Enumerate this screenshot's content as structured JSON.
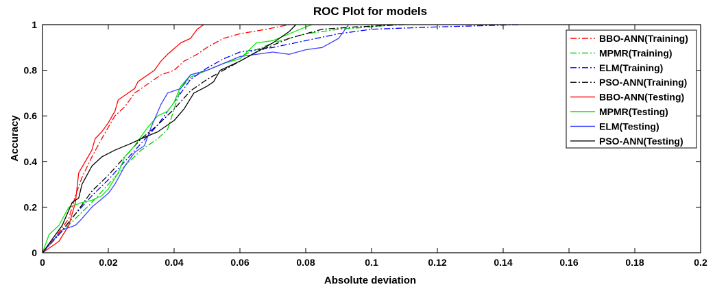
{
  "chart_data": {
    "type": "line",
    "title": "ROC Plot for models",
    "xlabel": "Absolute deviation",
    "ylabel": "Accuracy",
    "xlim": [
      0,
      0.2
    ],
    "ylim": [
      0,
      1
    ],
    "xticks": [
      0,
      0.02,
      0.04,
      0.06,
      0.08,
      0.1,
      0.12,
      0.14,
      0.16,
      0.18,
      0.2
    ],
    "xtick_labels": [
      "0",
      "0.02",
      "0.04",
      "0.06",
      "0.08",
      "0.1",
      "0.12",
      "0.14",
      "0.16",
      "0.18",
      "0.2"
    ],
    "yticks": [
      0,
      0.2,
      0.4,
      0.6,
      0.8,
      1
    ],
    "ytick_labels": [
      "0",
      "0.2",
      "0.4",
      "0.6",
      "0.8",
      "1"
    ],
    "grid": false,
    "legend_position": "top-right",
    "series": [
      {
        "name": "BBO-ANN(Training)",
        "color": "#ff0000",
        "style": "dashdot",
        "points": [
          [
            0,
            0
          ],
          [
            0.004,
            0.07
          ],
          [
            0.008,
            0.15
          ],
          [
            0.01,
            0.25
          ],
          [
            0.012,
            0.33
          ],
          [
            0.015,
            0.42
          ],
          [
            0.018,
            0.5
          ],
          [
            0.02,
            0.55
          ],
          [
            0.022,
            0.6
          ],
          [
            0.025,
            0.64
          ],
          [
            0.028,
            0.7
          ],
          [
            0.032,
            0.74
          ],
          [
            0.036,
            0.78
          ],
          [
            0.04,
            0.8
          ],
          [
            0.043,
            0.84
          ],
          [
            0.047,
            0.87
          ],
          [
            0.05,
            0.9
          ],
          [
            0.055,
            0.94
          ],
          [
            0.06,
            0.96
          ],
          [
            0.068,
            0.98
          ],
          [
            0.075,
            1.0
          ]
        ]
      },
      {
        "name": "MPMR(Training)",
        "color": "#00cc00",
        "style": "dashdot",
        "points": [
          [
            0,
            0
          ],
          [
            0.005,
            0.08
          ],
          [
            0.01,
            0.15
          ],
          [
            0.015,
            0.22
          ],
          [
            0.02,
            0.3
          ],
          [
            0.025,
            0.38
          ],
          [
            0.03,
            0.45
          ],
          [
            0.035,
            0.5
          ],
          [
            0.038,
            0.54
          ],
          [
            0.04,
            0.63
          ],
          [
            0.042,
            0.72
          ],
          [
            0.045,
            0.77
          ],
          [
            0.05,
            0.8
          ],
          [
            0.06,
            0.86
          ],
          [
            0.07,
            0.92
          ],
          [
            0.08,
            0.96
          ],
          [
            0.09,
            0.98
          ],
          [
            0.1,
            0.99
          ],
          [
            0.107,
            1.0
          ]
        ]
      },
      {
        "name": "ELM(Training)",
        "color": "#0000ff",
        "style": "dashdot",
        "points": [
          [
            0,
            0
          ],
          [
            0.005,
            0.08
          ],
          [
            0.01,
            0.17
          ],
          [
            0.015,
            0.25
          ],
          [
            0.02,
            0.32
          ],
          [
            0.025,
            0.4
          ],
          [
            0.03,
            0.48
          ],
          [
            0.035,
            0.56
          ],
          [
            0.04,
            0.66
          ],
          [
            0.045,
            0.76
          ],
          [
            0.05,
            0.81
          ],
          [
            0.055,
            0.85
          ],
          [
            0.06,
            0.88
          ],
          [
            0.07,
            0.9
          ],
          [
            0.08,
            0.93
          ],
          [
            0.09,
            0.96
          ],
          [
            0.1,
            0.98
          ],
          [
            0.12,
            0.99
          ],
          [
            0.145,
            1.0
          ]
        ]
      },
      {
        "name": "PSO-ANN(Training)",
        "color": "#000000",
        "style": "dashdot",
        "points": [
          [
            0,
            0
          ],
          [
            0.005,
            0.08
          ],
          [
            0.01,
            0.17
          ],
          [
            0.015,
            0.27
          ],
          [
            0.02,
            0.34
          ],
          [
            0.025,
            0.42
          ],
          [
            0.03,
            0.5
          ],
          [
            0.035,
            0.56
          ],
          [
            0.04,
            0.63
          ],
          [
            0.045,
            0.71
          ],
          [
            0.05,
            0.76
          ],
          [
            0.055,
            0.8
          ],
          [
            0.06,
            0.84
          ],
          [
            0.065,
            0.88
          ],
          [
            0.07,
            0.91
          ],
          [
            0.075,
            0.94
          ],
          [
            0.08,
            0.96
          ],
          [
            0.085,
            0.98
          ],
          [
            0.095,
            0.99
          ],
          [
            0.11,
            1.0
          ]
        ]
      },
      {
        "name": "BBO-ANN(Testing)",
        "color": "#ff0000",
        "style": "solid",
        "points": [
          [
            0,
            0
          ],
          [
            0.005,
            0.05
          ],
          [
            0.008,
            0.12
          ],
          [
            0.01,
            0.22
          ],
          [
            0.011,
            0.35
          ],
          [
            0.013,
            0.4
          ],
          [
            0.015,
            0.45
          ],
          [
            0.016,
            0.5
          ],
          [
            0.018,
            0.53
          ],
          [
            0.02,
            0.57
          ],
          [
            0.022,
            0.62
          ],
          [
            0.023,
            0.67
          ],
          [
            0.026,
            0.7
          ],
          [
            0.028,
            0.72
          ],
          [
            0.029,
            0.75
          ],
          [
            0.032,
            0.78
          ],
          [
            0.034,
            0.8
          ],
          [
            0.036,
            0.84
          ],
          [
            0.038,
            0.87
          ],
          [
            0.042,
            0.92
          ],
          [
            0.045,
            0.94
          ],
          [
            0.047,
            0.98
          ],
          [
            0.049,
            1.0
          ]
        ]
      },
      {
        "name": "MPMR(Testing)",
        "color": "#00ee00",
        "style": "solid",
        "points": [
          [
            0,
            0
          ],
          [
            0.002,
            0.08
          ],
          [
            0.005,
            0.12
          ],
          [
            0.008,
            0.2
          ],
          [
            0.012,
            0.22
          ],
          [
            0.015,
            0.23
          ],
          [
            0.018,
            0.25
          ],
          [
            0.02,
            0.28
          ],
          [
            0.023,
            0.35
          ],
          [
            0.025,
            0.42
          ],
          [
            0.028,
            0.47
          ],
          [
            0.032,
            0.55
          ],
          [
            0.035,
            0.6
          ],
          [
            0.038,
            0.62
          ],
          [
            0.04,
            0.66
          ],
          [
            0.042,
            0.73
          ],
          [
            0.045,
            0.78
          ],
          [
            0.05,
            0.8
          ],
          [
            0.055,
            0.83
          ],
          [
            0.06,
            0.85
          ],
          [
            0.065,
            0.92
          ],
          [
            0.07,
            0.93
          ],
          [
            0.075,
            0.96
          ],
          [
            0.08,
            0.99
          ],
          [
            0.082,
            1.0
          ]
        ]
      },
      {
        "name": "ELM(Testing)",
        "color": "#4040ff",
        "style": "solid",
        "points": [
          [
            0,
            0
          ],
          [
            0.003,
            0.05
          ],
          [
            0.006,
            0.1
          ],
          [
            0.01,
            0.12
          ],
          [
            0.012,
            0.15
          ],
          [
            0.015,
            0.2
          ],
          [
            0.02,
            0.26
          ],
          [
            0.022,
            0.3
          ],
          [
            0.025,
            0.38
          ],
          [
            0.028,
            0.44
          ],
          [
            0.031,
            0.47
          ],
          [
            0.033,
            0.55
          ],
          [
            0.036,
            0.65
          ],
          [
            0.038,
            0.7
          ],
          [
            0.042,
            0.72
          ],
          [
            0.045,
            0.78
          ],
          [
            0.05,
            0.8
          ],
          [
            0.055,
            0.83
          ],
          [
            0.06,
            0.86
          ],
          [
            0.07,
            0.88
          ],
          [
            0.075,
            0.87
          ],
          [
            0.08,
            0.89
          ],
          [
            0.085,
            0.9
          ],
          [
            0.09,
            0.94
          ],
          [
            0.093,
            1.0
          ]
        ]
      },
      {
        "name": "PSO-ANN(Testing)",
        "color": "#000000",
        "style": "solid",
        "points": [
          [
            0,
            0
          ],
          [
            0.003,
            0.06
          ],
          [
            0.006,
            0.12
          ],
          [
            0.009,
            0.22
          ],
          [
            0.011,
            0.24
          ],
          [
            0.012,
            0.3
          ],
          [
            0.015,
            0.38
          ],
          [
            0.018,
            0.42
          ],
          [
            0.022,
            0.45
          ],
          [
            0.027,
            0.48
          ],
          [
            0.03,
            0.5
          ],
          [
            0.035,
            0.53
          ],
          [
            0.04,
            0.58
          ],
          [
            0.043,
            0.63
          ],
          [
            0.046,
            0.7
          ],
          [
            0.05,
            0.73
          ],
          [
            0.052,
            0.75
          ],
          [
            0.054,
            0.8
          ],
          [
            0.06,
            0.84
          ],
          [
            0.065,
            0.88
          ],
          [
            0.07,
            0.92
          ],
          [
            0.075,
            0.97
          ],
          [
            0.077,
            1.0
          ]
        ]
      }
    ]
  }
}
